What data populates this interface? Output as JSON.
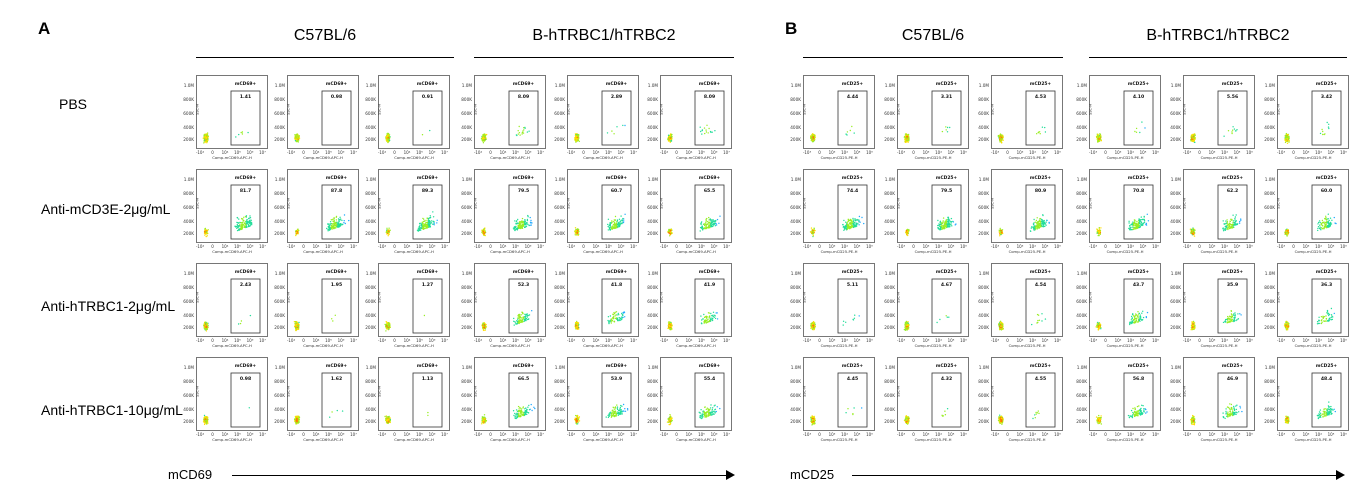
{
  "panels": [
    {
      "letter": "A",
      "groups": [
        "C57BL/6",
        "B-hTRBC1/hTRBC2"
      ],
      "gate_label": "mCD69+",
      "x_axis_label": "Comp-mCD69-APC-H",
      "axis_title": "mCD69",
      "y_axis_label": "SSC-H",
      "y_ticks": [
        "1.0M",
        "800K",
        "600K",
        "400K",
        "200K"
      ],
      "x_ticks": [
        "-10⁴",
        "0",
        "10⁴",
        "10⁵",
        "10⁶",
        "10⁷"
      ],
      "rows": [
        {
          "label": "PBS",
          "values": [
            "1.41",
            "0.98",
            "0.91",
            "8.09",
            "2.89",
            "8.09"
          ]
        },
        {
          "label": "Anti-mCD3E-2μg/mL",
          "values": [
            "81.7",
            "87.8",
            "89.3",
            "79.5",
            "60.7",
            "65.5"
          ]
        },
        {
          "label": "Anti-hTRBC1-2μg/mL",
          "values": [
            "2.43",
            "1.95",
            "1.27",
            "52.3",
            "41.8",
            "41.9"
          ]
        },
        {
          "label": "Anti-hTRBC1-10μg/mL",
          "values": [
            "0.98",
            "1.62",
            "1.13",
            "66.5",
            "53.9",
            "55.4"
          ]
        }
      ]
    },
    {
      "letter": "B",
      "groups": [
        "C57BL/6",
        "B-hTRBC1/hTRBC2"
      ],
      "gate_label": "mCD25+",
      "x_axis_label": "Comp-mCD25-PE-H",
      "axis_title": "mCD25",
      "y_axis_label": "SSC-H",
      "y_ticks": [
        "1.0M",
        "800K",
        "600K",
        "400K",
        "200K"
      ],
      "x_ticks": [
        "-10³",
        "0",
        "10³",
        "10⁴",
        "10⁵",
        "10⁶"
      ],
      "rows": [
        {
          "values": [
            "4.44",
            "3.31",
            "4.53",
            "4.10",
            "5.56",
            "3.42"
          ]
        },
        {
          "values": [
            "74.4",
            "79.5",
            "80.9",
            "70.8",
            "62.2",
            "60.0"
          ]
        },
        {
          "values": [
            "5.11",
            "4.67",
            "4.54",
            "43.7",
            "35.9",
            "36.3"
          ]
        },
        {
          "values": [
            "4.45",
            "4.32",
            "4.55",
            "56.8",
            "46.9",
            "48.4"
          ]
        }
      ]
    }
  ],
  "chart_data": [
    {
      "type": "scatter",
      "title": "A",
      "xlabel": "mCD69",
      "gate": "mCD69+",
      "columns": [
        "C57BL/6",
        "C57BL/6",
        "C57BL/6",
        "B-hTRBC1/hTRBC2",
        "B-hTRBC1/hTRBC2",
        "B-hTRBC1/hTRBC2"
      ],
      "series": [
        {
          "name": "PBS",
          "values": [
            1.41,
            0.98,
            0.91,
            8.09,
            2.89,
            8.09
          ]
        },
        {
          "name": "Anti-mCD3E-2μg/mL",
          "values": [
            81.7,
            87.8,
            89.3,
            79.5,
            60.7,
            65.5
          ]
        },
        {
          "name": "Anti-hTRBC1-2μg/mL",
          "values": [
            2.43,
            1.95,
            1.27,
            52.3,
            41.8,
            41.9
          ]
        },
        {
          "name": "Anti-hTRBC1-10μg/mL",
          "values": [
            0.98,
            1.62,
            1.13,
            66.5,
            53.9,
            55.4
          ]
        }
      ]
    },
    {
      "type": "scatter",
      "title": "B",
      "xlabel": "mCD25",
      "gate": "mCD25+",
      "columns": [
        "C57BL/6",
        "C57BL/6",
        "C57BL/6",
        "B-hTRBC1/hTRBC2",
        "B-hTRBC1/hTRBC2",
        "B-hTRBC1/hTRBC2"
      ],
      "series": [
        {
          "name": "PBS",
          "values": [
            4.44,
            3.31,
            4.53,
            4.1,
            5.56,
            3.42
          ]
        },
        {
          "name": "Anti-mCD3E-2μg/mL",
          "values": [
            74.4,
            79.5,
            80.9,
            70.8,
            62.2,
            60.0
          ]
        },
        {
          "name": "Anti-hTRBC1-2μg/mL",
          "values": [
            5.11,
            4.67,
            4.54,
            43.7,
            35.9,
            36.3
          ]
        },
        {
          "name": "Anti-hTRBC1-10μg/mL",
          "values": [
            4.45,
            4.32,
            4.55,
            56.8,
            46.9,
            48.4
          ]
        }
      ]
    }
  ]
}
